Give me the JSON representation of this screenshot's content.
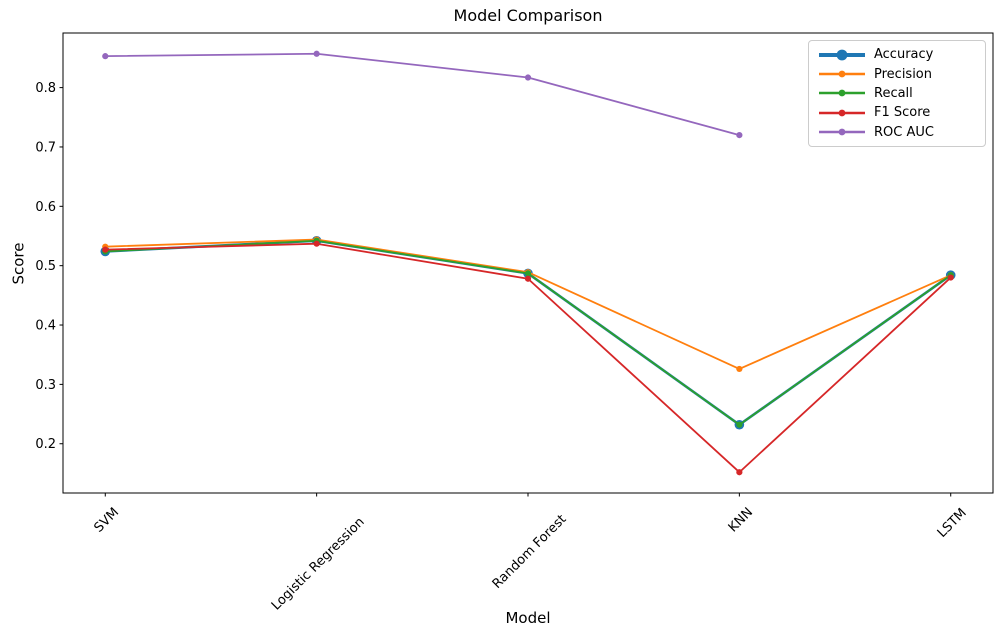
{
  "chart_data": {
    "type": "line",
    "title": "Model Comparison",
    "xlabel": "Model",
    "ylabel": "Score",
    "categories": [
      "SVM",
      "Logistic Regression",
      "Random Forest",
      "KNN",
      "LSTM"
    ],
    "series": [
      {
        "name": "Accuracy",
        "color": "#1f77b4",
        "values": [
          0.524,
          0.542,
          0.487,
          0.232,
          0.484
        ],
        "linewidth": 2.6,
        "markersize": 4.8
      },
      {
        "name": "Precision",
        "color": "#ff7f0e",
        "values": [
          0.532,
          0.544,
          0.489,
          0.326,
          0.484
        ],
        "linewidth": 1.8,
        "markersize": 3.1
      },
      {
        "name": "Recall",
        "color": "#2ca02c",
        "values": [
          0.524,
          0.542,
          0.487,
          0.232,
          0.484
        ],
        "linewidth": 1.8,
        "markersize": 3.1
      },
      {
        "name": "F1 Score",
        "color": "#d62728",
        "values": [
          0.527,
          0.537,
          0.478,
          0.152,
          0.48
        ],
        "linewidth": 1.8,
        "markersize": 3.1
      },
      {
        "name": "ROC AUC",
        "color": "#9467bd",
        "values": [
          0.853,
          0.857,
          0.817,
          0.72,
          null
        ],
        "linewidth": 1.8,
        "markersize": 3.1
      }
    ],
    "ylim": [
      0.117,
      0.892
    ],
    "yticks": [
      0.2,
      0.3,
      0.4,
      0.5,
      0.6,
      0.7,
      0.8
    ],
    "grid": false,
    "legend_position": "upper right",
    "x_tick_rotation": 45,
    "axis_color": "#000000",
    "background_color": "#ffffff"
  }
}
